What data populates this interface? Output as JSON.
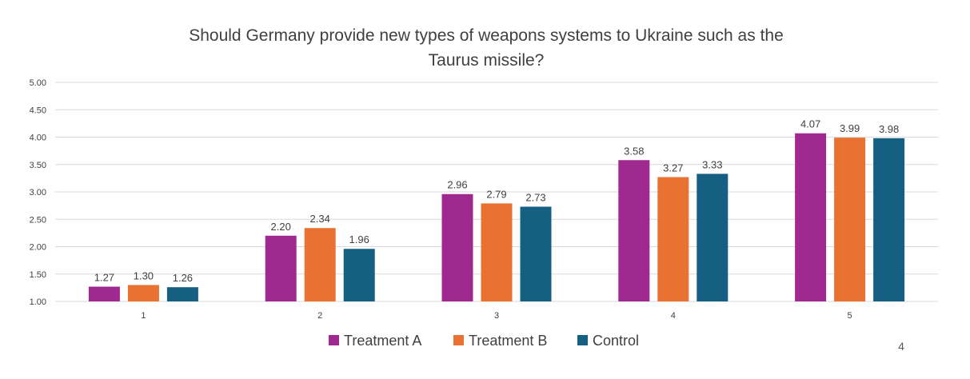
{
  "chart_data": {
    "type": "bar",
    "title_lines": [
      "Should Germany provide new types of weapons systems to Ukraine such as the",
      "Taurus missile?"
    ],
    "xlabel": "",
    "ylabel": "",
    "categories": [
      "1",
      "2",
      "3",
      "4",
      "5"
    ],
    "series": [
      {
        "name": "Treatment A",
        "color": "#a0298f",
        "values": [
          1.27,
          2.2,
          2.96,
          3.58,
          4.07
        ]
      },
      {
        "name": "Treatment B",
        "color": "#e97132",
        "values": [
          1.3,
          2.34,
          2.79,
          3.27,
          3.99
        ]
      },
      {
        "name": "Control",
        "color": "#156082",
        "values": [
          1.26,
          1.96,
          2.73,
          3.33,
          3.98
        ]
      }
    ],
    "ylim": [
      1.0,
      5.0
    ],
    "yticks": [
      "1.00",
      "1.50",
      "2.00",
      "2.50",
      "3.00",
      "3.50",
      "4.00",
      "4.50",
      "5.00"
    ],
    "grid": true,
    "legend_position": "bottom"
  },
  "page_number": "4"
}
